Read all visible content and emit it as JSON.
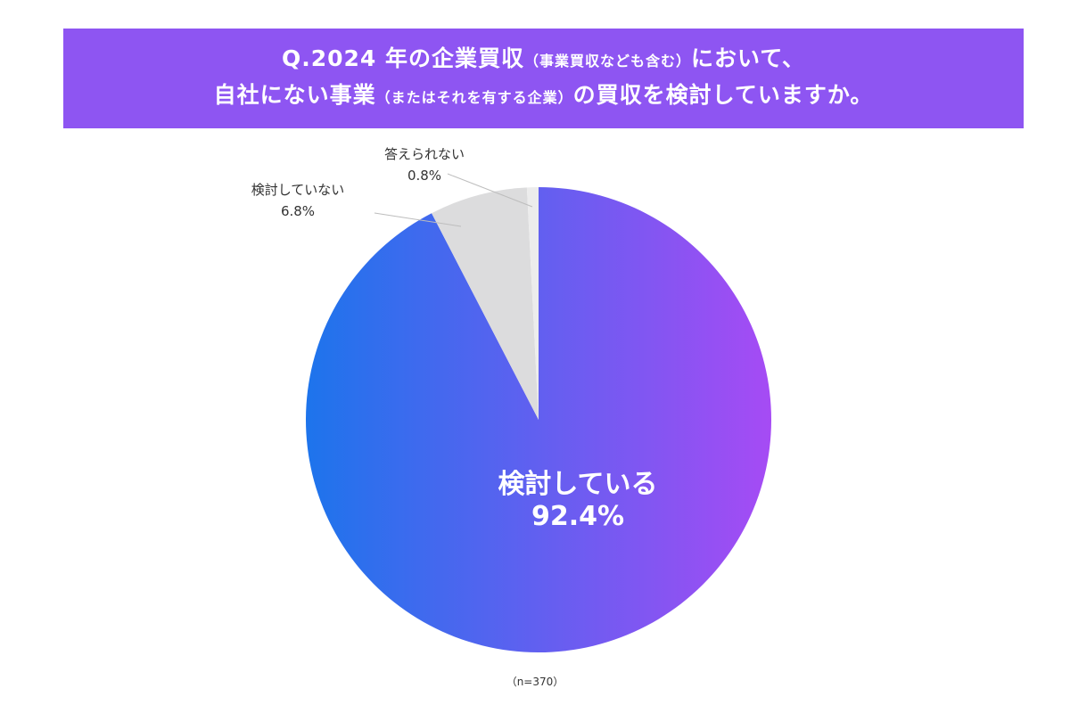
{
  "title": {
    "line1_prefix": "Q.2024 年の企業買収",
    "line1_small": "（事業買収なども含む）",
    "line1_suffix": "において、",
    "line2_prefix": "自社にない事業",
    "line2_small": "（またはそれを有する企業）",
    "line2_suffix": "の買収を検討していますか。"
  },
  "note": "（n=370）",
  "chart_data": {
    "type": "pie",
    "start_angle_deg": 0,
    "direction": "clockwise",
    "slices": [
      {
        "label": "検討している",
        "value": 92.4,
        "value_label": "92.4%",
        "fill": "gradient"
      },
      {
        "label": "検討していない",
        "value": 6.8,
        "value_label": "6.8%",
        "fill": "#dcdcdd"
      },
      {
        "label": "答えられない",
        "value": 0.8,
        "value_label": "0.8%",
        "fill": "#ececec"
      }
    ],
    "gradient": {
      "from": "#1d74ec",
      "to": "#a64bf4"
    }
  }
}
